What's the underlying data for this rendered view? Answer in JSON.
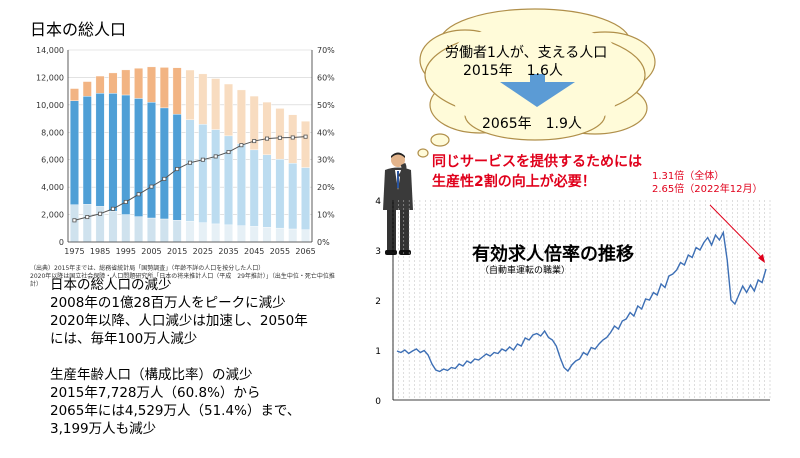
{
  "left": {
    "title": "日本の総人口",
    "source_line1": "（出典）2015年までは、総務省統計局「国勢調査」（年齢不詳の人口を按分した人口）",
    "source_line2": "2020年以降は国立社会保障・人口問題研究所「日本の将来推計人口（平成　29年推計）」（出生中位・死亡中位推",
    "source_line3": "計）",
    "text_lines": [
      "日本の総人口の減少",
      "2008年の1億28百万人をピークに減少",
      "2020年以降、人口減少は加速し、2050年",
      "には、毎年100万人減少",
      "",
      "生産年齢人口（構成比率）の減少",
      "2015年7,728万人（60.8%）から",
      "2065年には4,529万人（51.4%）まで、",
      "3,199万人も減少"
    ]
  },
  "bubble": {
    "line1": "労働者1人が、支える人口",
    "line2": "2015年　1.6人",
    "line3": "2065年　1.9人"
  },
  "right": {
    "red_line1": "同じサービスを提供するためには",
    "red_line2": "生産性2割の向上が必要！",
    "annot_line1": "1.31倍（全体）",
    "annot_line2": "2.65倍（2022年12月）",
    "title": "有効求人倍率の推移",
    "subtitle": "（自動車運転の職業）"
  },
  "colors": {
    "young": "#cfe2ee",
    "working": "#4f9fd6",
    "elderly": "#f2b483",
    "young_proj": "#e6f0f6",
    "working_proj": "#bcdcf0",
    "elderly_proj": "#f8dcc0",
    "ratio_line": "#555555",
    "job_line": "#3d6fb5",
    "red": "#e0001b",
    "arrow_blue": "#5b9bd5"
  },
  "chart_data": [
    {
      "type": "bar",
      "title": "日本の総人口",
      "xlabel": "",
      "ylabel": "",
      "x": [
        1975,
        1980,
        1985,
        1990,
        1995,
        2000,
        2005,
        2010,
        2015,
        2020,
        2025,
        2030,
        2035,
        2040,
        2045,
        2050,
        2055,
        2060,
        2065
      ],
      "x_tick_labels": [
        "1975",
        "1985",
        "1995",
        "2005",
        "2015",
        "2025",
        "2035",
        "2045",
        "2055",
        "2065"
      ],
      "series": [
        {
          "values": [
            2720,
            2750,
            2600,
            2250,
            2000,
            1850,
            1750,
            1680,
            1590,
            1510,
            1410,
            1320,
            1250,
            1190,
            1140,
            1080,
            1010,
            950,
            900
          ]
        },
        {
          "values": [
            7580,
            7880,
            8250,
            8590,
            8720,
            8620,
            8440,
            8100,
            7730,
            7410,
            7170,
            6880,
            6490,
            5980,
            5580,
            5280,
            5030,
            4790,
            4530
          ]
        },
        {
          "values": [
            890,
            1070,
            1250,
            1490,
            1830,
            2200,
            2580,
            2950,
            3390,
            3620,
            3680,
            3720,
            3780,
            3920,
            3920,
            3840,
            3700,
            3540,
            3380
          ]
        }
      ],
      "ratio_line": [
        7.9,
        9.1,
        10.3,
        12.1,
        14.6,
        17.4,
        20.2,
        23.0,
        26.6,
        28.9,
        30.0,
        31.2,
        32.8,
        35.3,
        36.8,
        37.7,
        38.0,
        38.1,
        38.4
      ],
      "ylim": [
        0,
        14000
      ],
      "y_ticks": [
        "0",
        "2,000",
        "4,000",
        "6,000",
        "8,000",
        "10,000",
        "12,000",
        "14,000"
      ],
      "y2lim": [
        0,
        70
      ],
      "y2_ticks": [
        "0%",
        "10%",
        "20%",
        "30%",
        "40%",
        "50%",
        "60%",
        "70%"
      ],
      "projection_from": 2020,
      "grid": true
    },
    {
      "type": "line",
      "title": "有効求人倍率の推移",
      "subtitle": "（自動車運転の職業）",
      "ylim": [
        0,
        4
      ],
      "y_ticks": [
        "0",
        "1",
        "2",
        "3",
        "4"
      ],
      "values": [
        0.98,
        0.95,
        1.0,
        0.93,
        0.98,
        1.02,
        0.95,
        0.99,
        0.9,
        0.72,
        0.6,
        0.57,
        0.62,
        0.59,
        0.65,
        0.63,
        0.72,
        0.68,
        0.78,
        0.74,
        0.82,
        0.8,
        0.86,
        0.92,
        0.88,
        0.95,
        0.93,
        1.02,
        0.98,
        1.06,
        1.0,
        1.12,
        1.08,
        1.24,
        1.2,
        1.3,
        1.33,
        1.28,
        1.38,
        1.25,
        1.2,
        1.08,
        0.85,
        0.65,
        0.58,
        0.7,
        0.78,
        0.82,
        0.95,
        0.9,
        1.05,
        1.02,
        1.12,
        1.2,
        1.25,
        1.35,
        1.48,
        1.42,
        1.58,
        1.62,
        1.75,
        1.68,
        1.88,
        1.82,
        2.02,
        2.0,
        2.15,
        2.1,
        2.32,
        2.25,
        2.48,
        2.52,
        2.6,
        2.75,
        2.7,
        2.9,
        2.85,
        3.05,
        3.0,
        3.15,
        3.25,
        3.1,
        3.3,
        3.2,
        3.35,
        2.8,
        2.0,
        1.92,
        2.1,
        2.28,
        2.15,
        2.3,
        2.18,
        2.4,
        2.35,
        2.62
      ]
    }
  ]
}
